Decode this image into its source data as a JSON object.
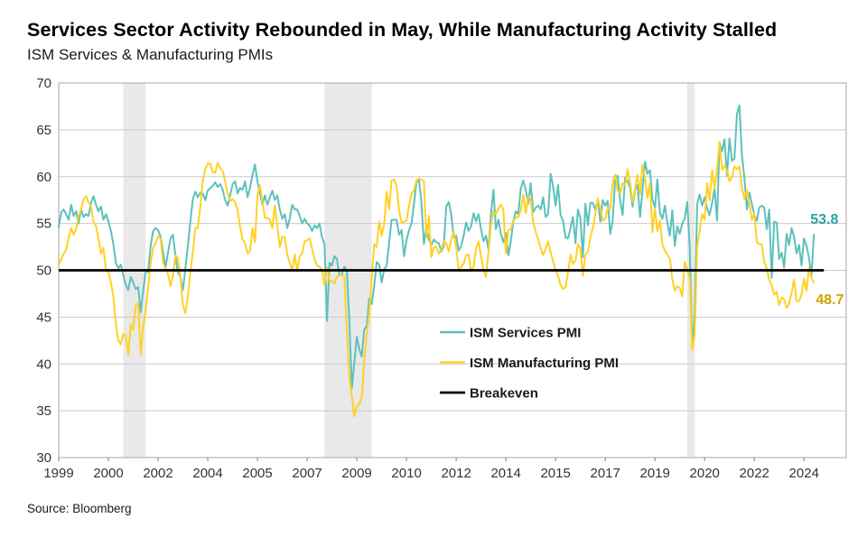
{
  "header": {
    "title": "Services Sector Activity Rebounded in May, While Manufacturing Activity Stalled",
    "subtitle": "ISM Services & Manufacturing PMIs"
  },
  "footer": {
    "source": "Source: Bloomberg"
  },
  "chart_data": {
    "type": "line",
    "title": "ISM Services & Manufacturing PMIs",
    "x_start": "1999-01",
    "x_end": "2024-05",
    "frequency": "monthly",
    "ylim": [
      30,
      70
    ],
    "y_ticks": [
      30,
      35,
      40,
      45,
      50,
      55,
      60,
      65,
      70
    ],
    "x_tick_months": [
      0,
      20,
      40,
      60,
      80,
      100,
      120,
      140,
      160,
      180,
      200,
      220,
      240,
      260,
      280,
      300
    ],
    "x_tick_labels": [
      "1999",
      "2000",
      "2002",
      "2004",
      "2005",
      "2007",
      "2009",
      "2010",
      "2012",
      "2014",
      "2015",
      "2017",
      "2019",
      "2020",
      "2022",
      "2024"
    ],
    "axis_total_months": 317,
    "grid": true,
    "grid_color": "#c9c9c9",
    "border_color": "#b3b3b3",
    "tick_color": "#7f7f7f",
    "axis_label_color": "#333333",
    "band_color": "#e9e9e9",
    "recession_bands_months": [
      [
        26,
        35
      ],
      [
        107,
        126
      ],
      [
        253,
        256
      ]
    ],
    "breakeven": {
      "label": "Breakeven",
      "value": 50,
      "color": "#000000",
      "end_month": 308
    },
    "legend": {
      "position": "inside-lower-center"
    },
    "series": [
      {
        "name": "ISM Services PMI",
        "color": "#5cc1bc",
        "end_label": "53.8",
        "end_label_color": "#2aa39d",
        "values": [
          54.6,
          56.2,
          56.5,
          56.0,
          55.4,
          57.0,
          55.8,
          56.3,
          55.0,
          56.5,
          55.7,
          56.0,
          55.8,
          57.2,
          57.9,
          57.0,
          56.3,
          56.8,
          55.4,
          56.0,
          55.2,
          54.2,
          52.8,
          50.8,
          50.2,
          50.6,
          49.5,
          48.4,
          47.9,
          49.3,
          48.7,
          48.0,
          48.2,
          45.5,
          47.8,
          49.9,
          49.8,
          52.6,
          54.2,
          54.5,
          54.3,
          53.6,
          52.0,
          50.3,
          51.9,
          53.4,
          53.8,
          51.5,
          49.8,
          49.3,
          47.9,
          50.2,
          52.6,
          55.2,
          57.6,
          58.4,
          57.8,
          58.3,
          58.2,
          57.5,
          58.5,
          58.8,
          59.0,
          59.4,
          58.9,
          59.2,
          58.6,
          57.5,
          56.9,
          58.0,
          59.2,
          59.5,
          58.2,
          58.8,
          58.6,
          59.5,
          57.8,
          58.8,
          60.2,
          61.3,
          59.5,
          58.2,
          57.0,
          58.0,
          57.0,
          57.8,
          58.5,
          57.5,
          58.0,
          56.5,
          55.5,
          56.0,
          54.5,
          55.5,
          57.0,
          56.5,
          56.5,
          55.8,
          55.0,
          55.5,
          55.0,
          54.8,
          54.2,
          54.8,
          54.5,
          55.0,
          53.5,
          52.8,
          44.6,
          50.8,
          50.5,
          51.5,
          51.2,
          49.5,
          49.6,
          50.4,
          50.0,
          44.6,
          37.4,
          40.1,
          42.9,
          41.6,
          40.8,
          43.7,
          44.0,
          47.0,
          46.4,
          48.4,
          50.9,
          50.6,
          48.7,
          50.1,
          50.5,
          53.0,
          55.4,
          55.4,
          55.4,
          53.8,
          54.3,
          51.5,
          53.2,
          54.3,
          55.0,
          57.1,
          59.4,
          59.7,
          57.3,
          52.8,
          54.6,
          53.3,
          52.7,
          53.3,
          53.0,
          52.9,
          52.0,
          52.6,
          56.8,
          57.3,
          56.0,
          53.5,
          53.7,
          52.1,
          52.6,
          53.7,
          55.1,
          54.2,
          54.7,
          56.1,
          55.2,
          56.0,
          54.4,
          53.1,
          53.7,
          52.2,
          56.0,
          58.6,
          54.4,
          55.4,
          53.9,
          53.0,
          54.0,
          51.6,
          53.1,
          55.2,
          56.3,
          56.0,
          58.7,
          59.6,
          58.6,
          57.1,
          59.3,
          56.2,
          56.7,
          56.9,
          56.5,
          57.8,
          55.7,
          56.0,
          60.3,
          59.0,
          56.9,
          59.1,
          55.9,
          55.3,
          53.5,
          53.4,
          54.5,
          55.7,
          52.9,
          56.5,
          55.5,
          51.4,
          57.1,
          54.8,
          57.2,
          57.2,
          56.5,
          57.6,
          55.2,
          57.5,
          56.9,
          57.4,
          53.9,
          55.3,
          59.8,
          60.1,
          57.4,
          55.9,
          59.9,
          59.5,
          58.8,
          56.8,
          58.6,
          59.1,
          55.7,
          58.5,
          61.6,
          60.3,
          60.7,
          57.6,
          56.7,
          59.7,
          56.1,
          55.5,
          56.9,
          55.1,
          53.7,
          56.4,
          52.6,
          54.7,
          53.9,
          55.0,
          55.5,
          57.3,
          52.5,
          41.8,
          45.4,
          57.1,
          58.1,
          56.9,
          57.8,
          56.6,
          55.9,
          57.2,
          58.7,
          55.3,
          63.7,
          62.7,
          64.0,
          60.1,
          64.1,
          61.7,
          61.9,
          66.7,
          67.6,
          62.3,
          59.9,
          56.5,
          58.3,
          57.1,
          55.9,
          55.3,
          56.7,
          56.9,
          56.7,
          54.4,
          56.5,
          49.2,
          55.2,
          55.1,
          51.2,
          51.9,
          50.3,
          53.9,
          52.7,
          54.5,
          53.6,
          51.8,
          52.7,
          50.5,
          53.4,
          52.6,
          51.4,
          49.4,
          53.8
        ]
      },
      {
        "name": "ISM Manufacturing PMI",
        "color": "#ffd125",
        "end_label": "48.7",
        "end_label_color": "#cda400",
        "values": [
          50.6,
          51.2,
          51.8,
          52.2,
          53.5,
          54.5,
          53.8,
          54.4,
          55.8,
          56.5,
          57.6,
          57.9,
          57.3,
          56.8,
          55.2,
          54.7,
          53.4,
          51.8,
          52.4,
          50.0,
          49.8,
          48.7,
          47.2,
          44.3,
          42.5,
          42.1,
          43.2,
          43.0,
          41.0,
          44.2,
          43.7,
          46.2,
          46.5,
          41.0,
          44.0,
          45.7,
          48.2,
          50.7,
          52.4,
          52.9,
          53.6,
          53.4,
          50.8,
          50.2,
          49.6,
          48.3,
          49.4,
          51.6,
          51.3,
          49.3,
          46.3,
          45.4,
          47.2,
          49.8,
          51.9,
          54.5,
          54.5,
          56.8,
          59.6,
          60.8,
          61.4,
          61.4,
          60.5,
          60.4,
          61.5,
          60.9,
          60.6,
          59.5,
          58.2,
          57.4,
          57.6,
          57.3,
          56.4,
          54.7,
          53.3,
          52.9,
          51.8,
          52.0,
          54.5,
          53.0,
          58.0,
          59.1,
          57.3,
          55.6,
          55.6,
          55.4,
          54.5,
          56.9,
          54.7,
          52.5,
          53.6,
          53.5,
          51.7,
          50.8,
          49.9,
          51.7,
          49.9,
          51.5,
          51.8,
          53.1,
          53.2,
          53.4,
          52.3,
          51.2,
          50.5,
          50.4,
          50.0,
          48.4,
          50.3,
          48.8,
          48.9,
          48.6,
          49.3,
          49.5,
          49.5,
          49.3,
          43.4,
          38.7,
          36.6,
          34.4,
          35.5,
          35.7,
          36.4,
          40.4,
          43.2,
          45.3,
          49.1,
          52.8,
          52.5,
          55.2,
          53.7,
          54.9,
          58.4,
          56.5,
          59.6,
          59.7,
          59.0,
          56.4,
          55.1,
          55.2,
          55.3,
          56.9,
          58.2,
          58.5,
          59.6,
          59.8,
          59.7,
          59.5,
          53.5,
          55.8,
          51.4,
          52.5,
          52.5,
          51.8,
          52.2,
          53.1,
          52.9,
          52.0,
          53.3,
          54.1,
          52.5,
          49.9,
          50.4,
          50.7,
          51.6,
          51.7,
          49.9,
          50.4,
          52.3,
          53.1,
          51.5,
          50.0,
          49.3,
          52.0,
          54.9,
          56.3,
          56.0,
          56.6,
          57.0,
          56.5,
          51.8,
          54.3,
          54.4,
          55.3,
          55.6,
          55.7,
          56.4,
          58.1,
          56.1,
          57.9,
          57.6,
          55.1,
          54.1,
          53.3,
          52.3,
          51.6,
          52.3,
          53.1,
          51.9,
          51.0,
          50.0,
          49.4,
          48.4,
          48.0,
          48.2,
          49.7,
          51.7,
          50.7,
          51.0,
          52.8,
          52.3,
          49.4,
          51.7,
          52.0,
          53.5,
          54.5,
          56.0,
          57.7,
          56.6,
          55.3,
          55.5,
          56.7,
          56.5,
          59.3,
          60.2,
          58.5,
          58.2,
          59.3,
          59.1,
          60.8,
          59.3,
          57.3,
          58.7,
          60.2,
          58.1,
          61.3,
          59.8,
          57.7,
          59.3,
          54.1,
          56.6,
          54.2,
          55.3,
          52.8,
          52.1,
          51.7,
          51.2,
          49.1,
          47.8,
          48.3,
          48.1,
          47.2,
          50.9,
          50.1,
          49.1,
          41.5,
          43.1,
          52.6,
          54.2,
          56.0,
          55.4,
          59.3,
          57.5,
          60.7,
          58.7,
          60.8,
          63.7,
          60.7,
          61.2,
          60.6,
          59.5,
          59.9,
          61.1,
          60.8,
          61.1,
          58.8,
          57.6,
          58.6,
          57.1,
          55.4,
          56.1,
          53.0,
          52.8,
          52.8,
          50.9,
          50.2,
          49.0,
          48.4,
          47.4,
          47.7,
          46.3,
          47.1,
          46.9,
          46.0,
          46.4,
          47.6,
          49.0,
          46.7,
          46.7,
          47.4,
          49.1,
          47.8,
          50.3,
          49.2,
          48.7
        ]
      }
    ]
  }
}
